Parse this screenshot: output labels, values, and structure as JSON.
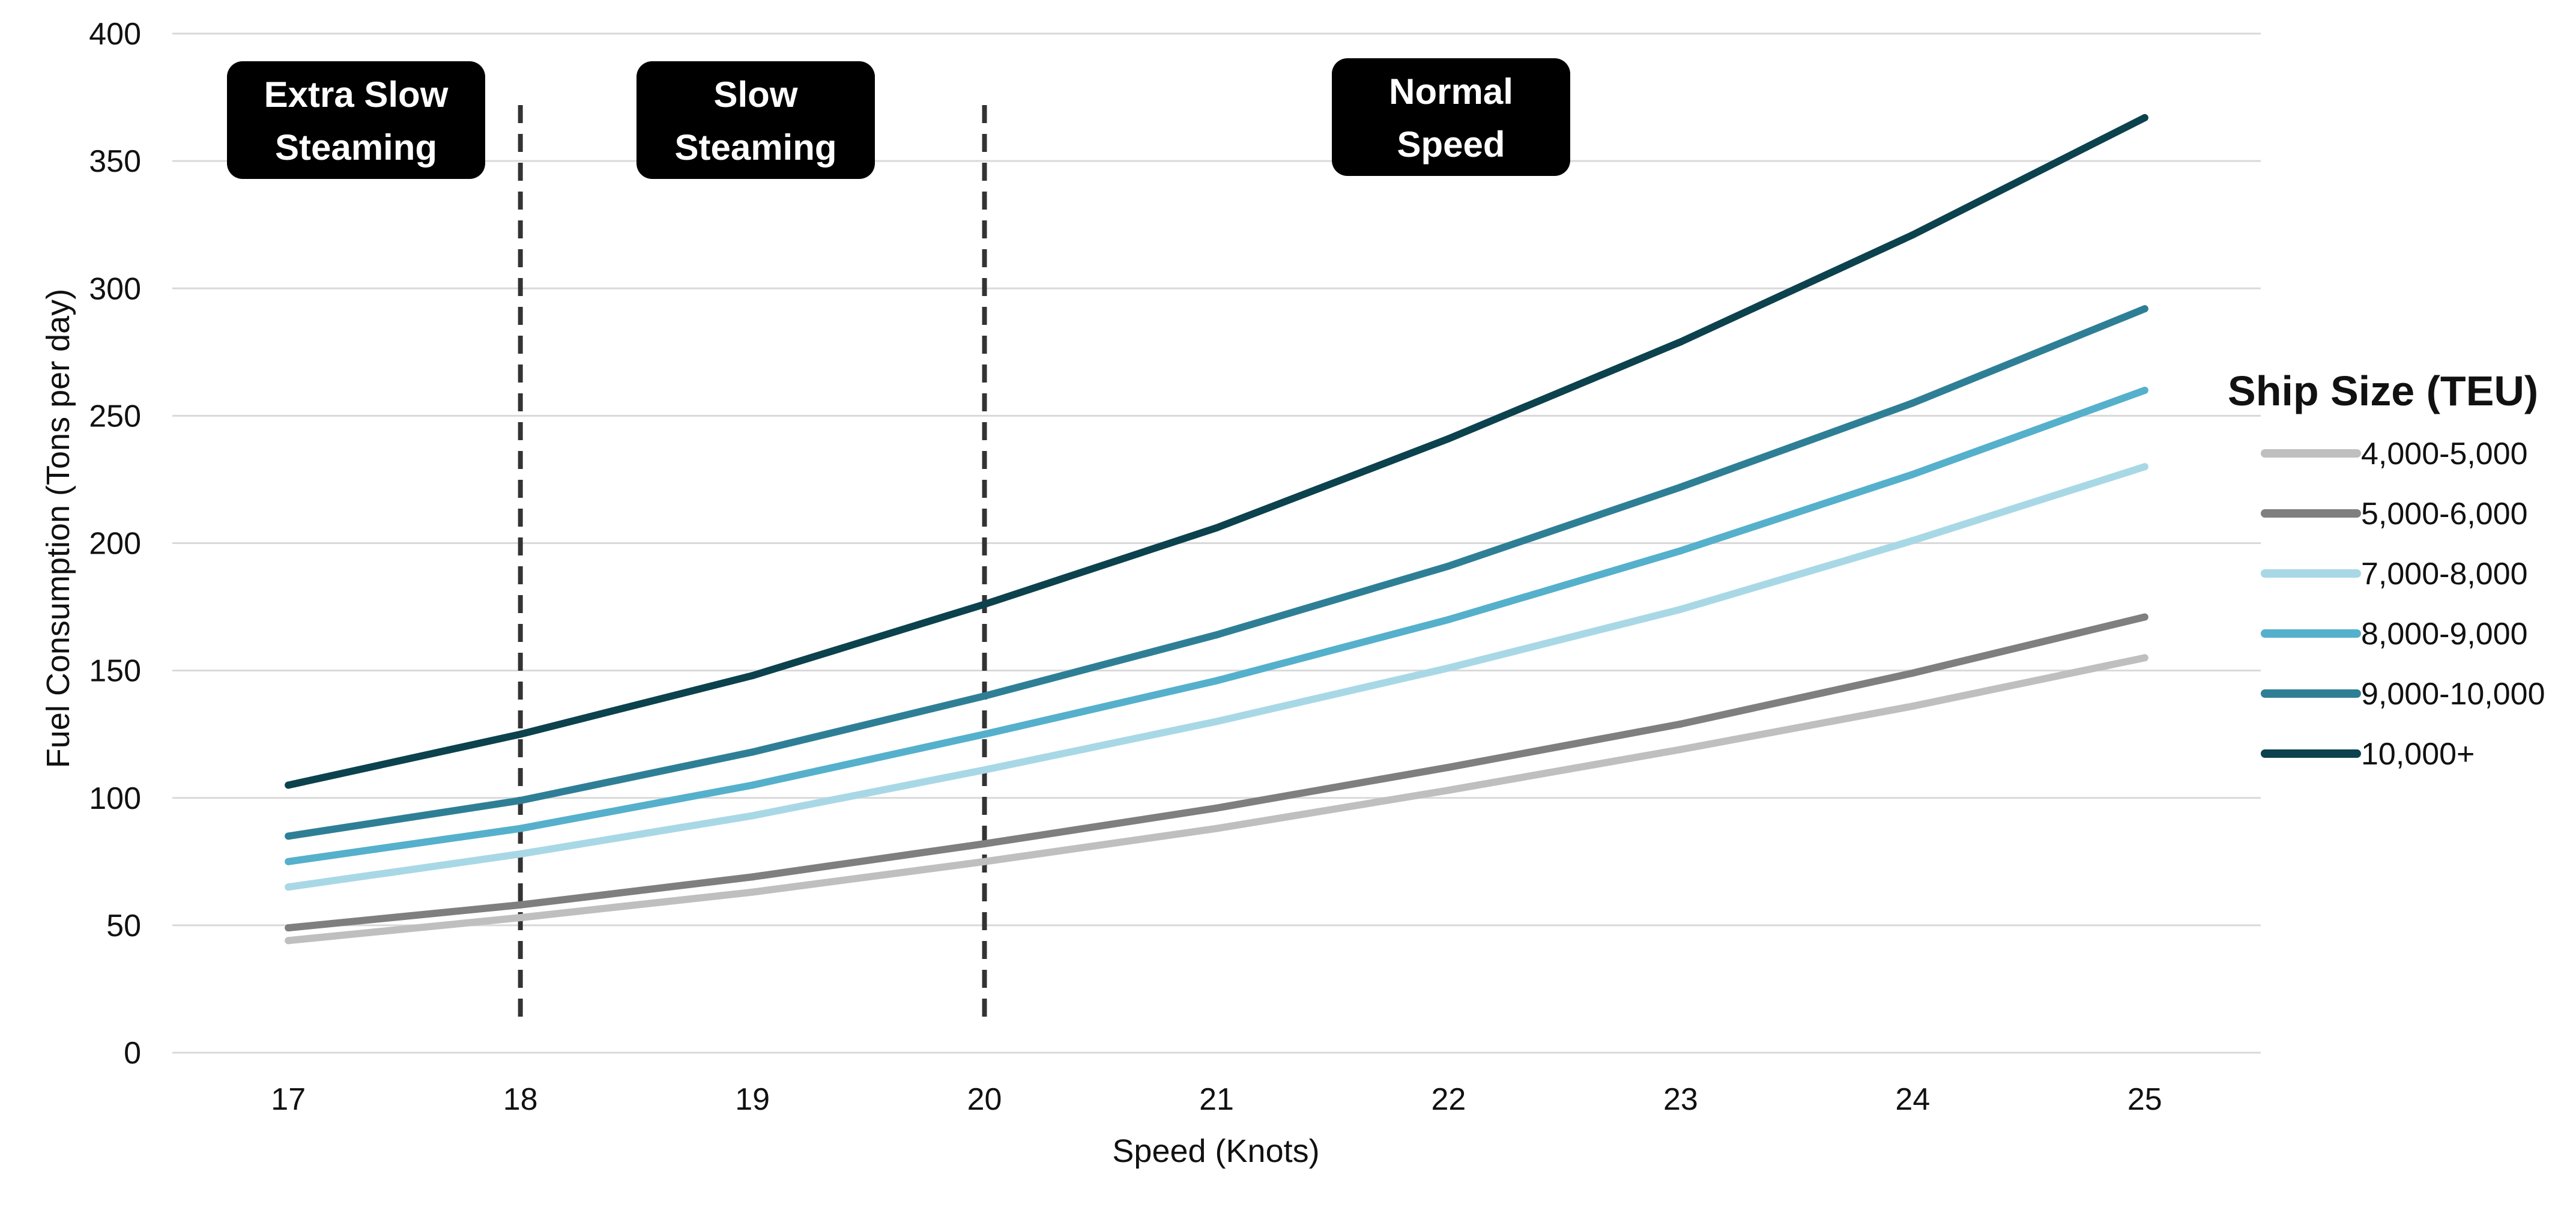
{
  "colors": {
    "background": "#ffffff",
    "gridline": "#d9d9d9",
    "divider": "#333333",
    "zone_box": "#000000",
    "zone_text": "#ffffff"
  },
  "chart_data": {
    "type": "line",
    "title": "",
    "xlabel": "Speed (Knots)",
    "ylabel": "Fuel Consumption (Tons per day)",
    "x": [
      17,
      18,
      19,
      20,
      21,
      22,
      23,
      24,
      25
    ],
    "xlim": [
      16.5,
      25.5
    ],
    "ylim": [
      0,
      400
    ],
    "yticks": [
      0,
      50,
      100,
      150,
      200,
      250,
      300,
      350,
      400
    ],
    "grid": "horizontal",
    "legend": {
      "title": "Ship Size (TEU)",
      "position": "right"
    },
    "series": [
      {
        "name": "4,000-5,000",
        "color": "#bfbfbf",
        "values": [
          44,
          53,
          63,
          75,
          88,
          103,
          119,
          136,
          155
        ]
      },
      {
        "name": "5,000-6,000",
        "color": "#7f7f7f",
        "values": [
          49,
          58,
          69,
          82,
          96,
          112,
          129,
          149,
          171
        ]
      },
      {
        "name": "7,000-8,000",
        "color": "#a8d8e6",
        "values": [
          65,
          78,
          93,
          111,
          130,
          151,
          174,
          201,
          230
        ]
      },
      {
        "name": "8,000-9,000",
        "color": "#55b0cc",
        "values": [
          75,
          88,
          105,
          125,
          146,
          170,
          197,
          227,
          260
        ]
      },
      {
        "name": "9,000-10,000",
        "color": "#2e7f96",
        "values": [
          85,
          99,
          118,
          140,
          164,
          191,
          222,
          255,
          292
        ]
      },
      {
        "name": "10,000+",
        "color": "#0b424d",
        "values": [
          105,
          125,
          148,
          176,
          206,
          241,
          279,
          321,
          367
        ]
      }
    ],
    "dividers": [
      18,
      20
    ],
    "zones": [
      {
        "lines": [
          "Extra Slow",
          "Steaming"
        ]
      },
      {
        "lines": [
          "Slow",
          "Steaming"
        ]
      },
      {
        "lines": [
          "Normal",
          "Speed"
        ]
      }
    ]
  }
}
